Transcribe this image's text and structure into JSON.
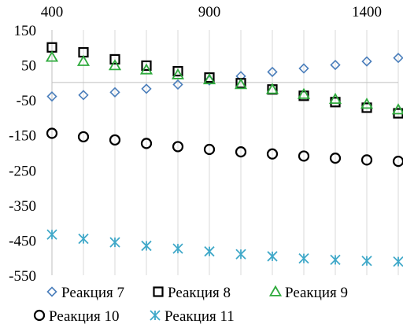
{
  "chart_data": {
    "type": "scatter",
    "title": "",
    "xlabel": "",
    "ylabel": "",
    "xlim": [
      400,
      1500
    ],
    "ylim": [
      -550,
      150
    ],
    "x_axis_position": "top",
    "x_ticks": [
      "400",
      "900",
      "1400"
    ],
    "x_tick_values": [
      400,
      900,
      1400
    ],
    "y_ticks": [
      "150",
      "50",
      "-50",
      "-150",
      "-250",
      "-350",
      "-450",
      "-550"
    ],
    "y_tick_values": [
      150,
      50,
      -50,
      -150,
      -250,
      -350,
      -450,
      -550
    ],
    "grid": {
      "vertical": true,
      "horizontal": false
    },
    "legend_position": "bottom",
    "x": [
      400,
      500,
      600,
      700,
      800,
      900,
      1000,
      1100,
      1200,
      1300,
      1400,
      1500
    ],
    "series": [
      {
        "name": "Реакция 7",
        "marker": "diamond",
        "color": "#4a7ebb",
        "values": [
          -40,
          -36,
          -28,
          -18,
          -6,
          6,
          18,
          30,
          40,
          50,
          60,
          70
        ]
      },
      {
        "name": "Реакция 8",
        "marker": "square",
        "color": "#000000",
        "values": [
          100,
          86,
          66,
          48,
          32,
          14,
          -2,
          -20,
          -38,
          -56,
          -72,
          -88
        ]
      },
      {
        "name": "Реакция 9",
        "marker": "triangle",
        "color": "#2eaa3c",
        "values": [
          72,
          60,
          48,
          36,
          22,
          8,
          -6,
          -20,
          -34,
          -48,
          -62,
          -78
        ]
      },
      {
        "name": "Реакция 10",
        "marker": "circle",
        "color": "#000000",
        "values": [
          -145,
          -155,
          -164,
          -174,
          -183,
          -191,
          -198,
          -204,
          -210,
          -216,
          -221,
          -225
        ]
      },
      {
        "name": "Реакция 11",
        "marker": "asterisk",
        "color": "#3fa8c8",
        "values": [
          -434,
          -446,
          -456,
          -466,
          -474,
          -482,
          -490,
          -496,
          -502,
          -506,
          -509,
          -511
        ]
      }
    ]
  }
}
